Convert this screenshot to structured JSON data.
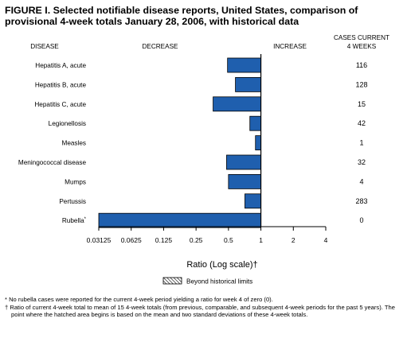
{
  "title": "FIGURE I. Selected notifiable disease reports, United States, comparison of provisional 4-week totals January 28, 2006, with historical data",
  "headers": {
    "disease": "DISEASE",
    "decrease": "DECREASE",
    "increase": "INCREASE",
    "cases_line1": "CASES CURRENT",
    "cases_line2": "4 WEEKS"
  },
  "legend": {
    "label": "Beyond historical limits"
  },
  "footnotes": {
    "star": "* No rubella cases were reported for the current 4-week period yielding a ratio for week 4 of zero (0).",
    "dagger": "† Ratio of current 4-week total to mean of 15 4-week totals (from previous, comparable, and subsequent 4-week periods for the past 5 years). The point where the hatched area begins is based on the mean and two standard deviations of these 4-week totals."
  },
  "colors": {
    "bar_fill": "#1f5fae",
    "bar_stroke": "#000000",
    "axis": "#000000"
  },
  "chart_data": {
    "type": "bar",
    "orientation": "horizontal",
    "xscale": "log2",
    "xlabel": "Ratio (Log scale)†",
    "xlim": [
      0.03125,
      4
    ],
    "reference_line": 1,
    "xticks": [
      "0.03125",
      "0.0625",
      "0.125",
      "0.25",
      "0.5",
      "1",
      "2",
      "4"
    ],
    "xtick_values": [
      0.03125,
      0.0625,
      0.125,
      0.25,
      0.5,
      1,
      2,
      4
    ],
    "categories": [
      "Hepatitis A, acute",
      "Hepatitis B, acute",
      "Hepatitis C, acute",
      "Legionellosis",
      "Measles",
      "Meningococcal disease",
      "Mumps",
      "Pertussis",
      "Rubella"
    ],
    "category_marks": [
      "",
      "",
      "",
      "",
      "",
      "",
      "",
      "",
      "*"
    ],
    "values": [
      0.49,
      0.58,
      0.36,
      0.79,
      0.89,
      0.48,
      0.5,
      0.71,
      0.03125
    ],
    "cases_current_4_weeks": [
      "116",
      "128",
      "15",
      "42",
      "1",
      "32",
      "4",
      "283",
      "0"
    ]
  }
}
